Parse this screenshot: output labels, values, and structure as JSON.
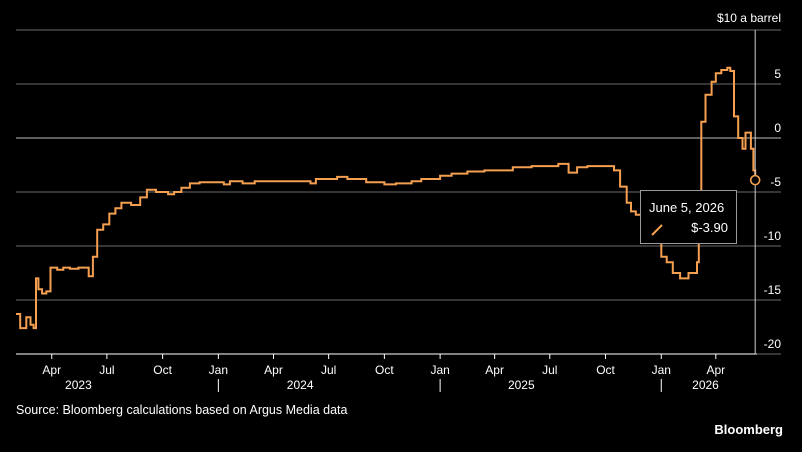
{
  "chart_data": {
    "type": "line",
    "unit_label": "$10 a barrel",
    "y_axis_position": "right",
    "ylim": [
      -20,
      10
    ],
    "yticks": [
      5,
      0,
      -5,
      -10,
      -15,
      -20
    ],
    "ytick_labels": [
      "5",
      "0",
      "-5",
      "-10",
      "-15",
      "-20"
    ],
    "xlim": [
      "2023-02-01",
      "2026-06-08"
    ],
    "xticks": [
      {
        "label": "Apr",
        "date": "2023-04-01"
      },
      {
        "label": "Jul",
        "date": "2023-07-01"
      },
      {
        "label": "Oct",
        "date": "2023-10-01"
      },
      {
        "label": "Jan",
        "date": "2024-01-01"
      },
      {
        "label": "Apr",
        "date": "2024-04-01"
      },
      {
        "label": "Jul",
        "date": "2024-07-01"
      },
      {
        "label": "Oct",
        "date": "2024-10-01"
      },
      {
        "label": "Jan",
        "date": "2025-01-01"
      },
      {
        "label": "Apr",
        "date": "2025-04-01"
      },
      {
        "label": "Jul",
        "date": "2025-07-01"
      },
      {
        "label": "Oct",
        "date": "2025-10-01"
      },
      {
        "label": "Jan",
        "date": "2026-01-01"
      },
      {
        "label": "Apr",
        "date": "2026-04-01"
      }
    ],
    "year_labels": [
      {
        "label": "2023",
        "date": "2023-05-15"
      },
      {
        "label": "2024",
        "date": "2024-05-15"
      },
      {
        "label": "2025",
        "date": "2025-05-15"
      },
      {
        "label": "2026",
        "date": "2026-03-15"
      }
    ],
    "year_separators": [
      "2024-01-01",
      "2025-01-01",
      "2026-01-01"
    ],
    "series": [
      {
        "color": "#f5a050",
        "points": [
          [
            "2023-02-01",
            -16.3
          ],
          [
            "2023-02-08",
            -17.6
          ],
          [
            "2023-02-18",
            -16.6
          ],
          [
            "2023-02-25",
            -17.3
          ],
          [
            "2023-03-02",
            -17.6
          ],
          [
            "2023-03-06",
            -13.0
          ],
          [
            "2023-03-10",
            -14.0
          ],
          [
            "2023-03-16",
            -14.4
          ],
          [
            "2023-03-23",
            -14.2
          ],
          [
            "2023-03-30",
            -12.0
          ],
          [
            "2023-04-10",
            -12.2
          ],
          [
            "2023-04-20",
            -12.0
          ],
          [
            "2023-05-01",
            -12.1
          ],
          [
            "2023-05-15",
            -12.0
          ],
          [
            "2023-06-01",
            -12.8
          ],
          [
            "2023-06-08",
            -11.0
          ],
          [
            "2023-06-15",
            -8.5
          ],
          [
            "2023-06-25",
            -8.0
          ],
          [
            "2023-07-05",
            -7.0
          ],
          [
            "2023-07-15",
            -6.5
          ],
          [
            "2023-07-25",
            -6.0
          ],
          [
            "2023-08-10",
            -6.2
          ],
          [
            "2023-08-25",
            -5.5
          ],
          [
            "2023-09-05",
            -4.8
          ],
          [
            "2023-09-20",
            -5.0
          ],
          [
            "2023-10-01",
            -5.0
          ],
          [
            "2023-10-10",
            -5.2
          ],
          [
            "2023-10-20",
            -5.0
          ],
          [
            "2023-11-01",
            -4.6
          ],
          [
            "2023-11-15",
            -4.2
          ],
          [
            "2023-12-01",
            -4.1
          ],
          [
            "2024-01-01",
            -4.1
          ],
          [
            "2024-01-10",
            -4.3
          ],
          [
            "2024-01-20",
            -4.0
          ],
          [
            "2024-02-10",
            -4.2
          ],
          [
            "2024-03-01",
            -4.0
          ],
          [
            "2024-04-01",
            -4.0
          ],
          [
            "2024-05-01",
            -4.0
          ],
          [
            "2024-06-01",
            -4.2
          ],
          [
            "2024-06-10",
            -3.8
          ],
          [
            "2024-07-01",
            -3.8
          ],
          [
            "2024-07-15",
            -3.6
          ],
          [
            "2024-08-01",
            -3.8
          ],
          [
            "2024-09-01",
            -4.1
          ],
          [
            "2024-10-01",
            -4.3
          ],
          [
            "2024-10-20",
            -4.2
          ],
          [
            "2024-11-15",
            -4.0
          ],
          [
            "2024-12-01",
            -3.8
          ],
          [
            "2025-01-01",
            -3.5
          ],
          [
            "2025-01-20",
            -3.3
          ],
          [
            "2025-02-15",
            -3.1
          ],
          [
            "2025-03-15",
            -3.0
          ],
          [
            "2025-04-01",
            -3.0
          ],
          [
            "2025-05-01",
            -2.7
          ],
          [
            "2025-06-01",
            -2.6
          ],
          [
            "2025-07-01",
            -2.6
          ],
          [
            "2025-07-15",
            -2.4
          ],
          [
            "2025-08-01",
            -3.2
          ],
          [
            "2025-08-15",
            -2.7
          ],
          [
            "2025-09-01",
            -2.6
          ],
          [
            "2025-10-01",
            -2.6
          ],
          [
            "2025-10-15",
            -3.0
          ],
          [
            "2025-10-25",
            -4.5
          ],
          [
            "2025-11-05",
            -6.0
          ],
          [
            "2025-11-12",
            -6.8
          ],
          [
            "2025-11-20",
            -7.1
          ],
          [
            "2025-12-01",
            -7.5
          ],
          [
            "2025-12-15",
            -9.5
          ],
          [
            "2026-01-01",
            -11.0
          ],
          [
            "2026-01-10",
            -11.5
          ],
          [
            "2026-01-20",
            -12.5
          ],
          [
            "2026-02-01",
            -13.0
          ],
          [
            "2026-02-15",
            -12.5
          ],
          [
            "2026-03-01",
            -11.5
          ],
          [
            "2026-03-04",
            -5.0
          ],
          [
            "2026-03-08",
            1.5
          ],
          [
            "2026-03-15",
            4.0
          ],
          [
            "2026-03-25",
            5.2
          ],
          [
            "2026-04-01",
            6.0
          ],
          [
            "2026-04-10",
            6.3
          ],
          [
            "2026-04-20",
            6.5
          ],
          [
            "2026-04-25",
            6.2
          ],
          [
            "2026-05-01",
            2.0
          ],
          [
            "2026-05-08",
            0.0
          ],
          [
            "2026-05-15",
            -1.0
          ],
          [
            "2026-05-20",
            0.5
          ],
          [
            "2026-05-25",
            0.5
          ],
          [
            "2026-05-29",
            -1.0
          ],
          [
            "2026-06-02",
            -3.0
          ],
          [
            "2026-06-05",
            -3.9
          ]
        ]
      }
    ],
    "highlight": {
      "date": "2026-06-05",
      "value": -3.9
    },
    "grid": true
  },
  "tooltip": {
    "date_label": "June 5, 2026",
    "value_label": "$-3.90"
  },
  "source_text": "Source: Bloomberg calculations based on Argus Media data",
  "brand_text": "Bloomberg"
}
